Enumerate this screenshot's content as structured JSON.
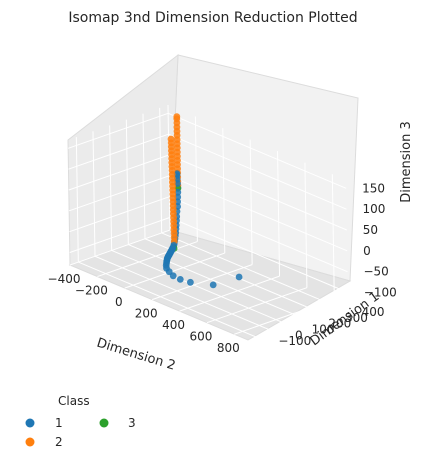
{
  "chart_data": {
    "type": "scatter3d",
    "title": "Isomap 3nd Dimension Reduction Plotted",
    "xlabel": "Dimension 2",
    "ylabel": "Dimension 1",
    "zlabel": "Dimension 3",
    "xlim": [
      -400,
      900
    ],
    "ylim": [
      -150,
      450
    ],
    "zlim": [
      -130,
      170
    ],
    "xticks": [
      "−400",
      "−200",
      "0",
      "200",
      "400",
      "600",
      "800"
    ],
    "yticks": [
      "−100",
      "0",
      "100",
      "200",
      "300",
      "400"
    ],
    "zticks": [
      "150",
      "100",
      "50",
      "0",
      "−50",
      "−100"
    ],
    "grid": true,
    "legend": {
      "title": "Class",
      "placement": "bottom-left",
      "entries": [
        {
          "name": "1",
          "color": "#1f77b4"
        },
        {
          "name": "2",
          "color": "#ff7f0e"
        },
        {
          "name": "3",
          "color": "#2ca02c"
        }
      ]
    },
    "series": [
      {
        "name": "1",
        "color": "#1f77b4",
        "points": [
          [
            -300,
            420,
            -10
          ],
          [
            -295,
            415,
            -20
          ],
          [
            -290,
            410,
            -30
          ],
          [
            -285,
            405,
            -40
          ],
          [
            -280,
            400,
            -50
          ],
          [
            -275,
            392,
            -60
          ],
          [
            -268,
            384,
            -70
          ],
          [
            -260,
            376,
            -78
          ],
          [
            -250,
            366,
            -86
          ],
          [
            -240,
            356,
            -92
          ],
          [
            -228,
            344,
            -98
          ],
          [
            -216,
            332,
            -102
          ],
          [
            -204,
            320,
            -106
          ],
          [
            -190,
            306,
            -108
          ],
          [
            -176,
            292,
            -110
          ],
          [
            -162,
            278,
            -110
          ],
          [
            -148,
            264,
            -110
          ],
          [
            -134,
            250,
            -108
          ],
          [
            -120,
            236,
            -106
          ],
          [
            -106,
            222,
            -104
          ],
          [
            -92,
            208,
            -102
          ],
          [
            -78,
            194,
            -100
          ],
          [
            -64,
            180,
            -98
          ],
          [
            -50,
            166,
            -96
          ],
          [
            -36,
            152,
            -94
          ],
          [
            -22,
            138,
            -92
          ],
          [
            -8,
            124,
            -90
          ],
          [
            6,
            110,
            -88
          ],
          [
            20,
            96,
            -86
          ],
          [
            34,
            82,
            -84
          ],
          [
            50,
            66,
            -82
          ],
          [
            68,
            50,
            -80
          ],
          [
            90,
            30,
            -78
          ],
          [
            115,
            8,
            -76
          ],
          [
            145,
            -18,
            -74
          ],
          [
            180,
            -45,
            -72
          ],
          [
            230,
            -70,
            -70
          ],
          [
            290,
            -95,
            -68
          ],
          [
            360,
            -110,
            -65
          ],
          [
            440,
            -115,
            -60
          ],
          [
            620,
            -125,
            -40
          ],
          [
            830,
            -140,
            10
          ],
          [
            -300,
            418,
            0
          ],
          [
            -300,
            416,
            10
          ],
          [
            -298,
            414,
            20
          ],
          [
            -296,
            412,
            25
          ]
        ]
      },
      {
        "name": "2",
        "color": "#ff7f0e",
        "points": [
          [
            -300,
            420,
            -5
          ],
          [
            -300,
            420,
            5
          ],
          [
            -300,
            420,
            15
          ],
          [
            -300,
            420,
            25
          ],
          [
            -300,
            420,
            35
          ],
          [
            -300,
            420,
            45
          ],
          [
            -300,
            420,
            55
          ],
          [
            -300,
            420,
            65
          ],
          [
            -300,
            420,
            75
          ],
          [
            -300,
            420,
            85
          ],
          [
            -300,
            420,
            95
          ],
          [
            -300,
            420,
            105
          ],
          [
            -300,
            420,
            115
          ],
          [
            -300,
            420,
            125
          ],
          [
            -300,
            420,
            135
          ],
          [
            -300,
            420,
            145
          ],
          [
            -300,
            420,
            155
          ],
          [
            -300,
            420,
            160
          ],
          [
            -160,
            280,
            -100
          ],
          [
            -158,
            278,
            -90
          ],
          [
            -156,
            276,
            -80
          ],
          [
            -154,
            274,
            -70
          ],
          [
            -152,
            272,
            -60
          ],
          [
            -150,
            270,
            -50
          ],
          [
            -148,
            268,
            -40
          ],
          [
            -146,
            266,
            -30
          ],
          [
            -144,
            264,
            -20
          ],
          [
            -142,
            262,
            -10
          ],
          [
            -140,
            260,
            0
          ],
          [
            -138,
            258,
            10
          ],
          [
            -136,
            256,
            20
          ],
          [
            -134,
            254,
            30
          ],
          [
            -132,
            252,
            40
          ],
          [
            -130,
            250,
            50
          ],
          [
            -128,
            248,
            60
          ],
          [
            -126,
            246,
            70
          ],
          [
            -124,
            244,
            80
          ],
          [
            -122,
            242,
            90
          ],
          [
            -120,
            240,
            100
          ],
          [
            -118,
            238,
            110
          ],
          [
            -116,
            236,
            120
          ],
          [
            -114,
            234,
            130
          ],
          [
            -112,
            232,
            140
          ],
          [
            -110,
            230,
            150
          ],
          [
            -108,
            228,
            160
          ]
        ]
      },
      {
        "name": "3",
        "color": "#2ca02c",
        "points": [
          [
            -300,
            420,
            -12
          ],
          [
            -140,
            262,
            -112
          ]
        ]
      }
    ]
  }
}
